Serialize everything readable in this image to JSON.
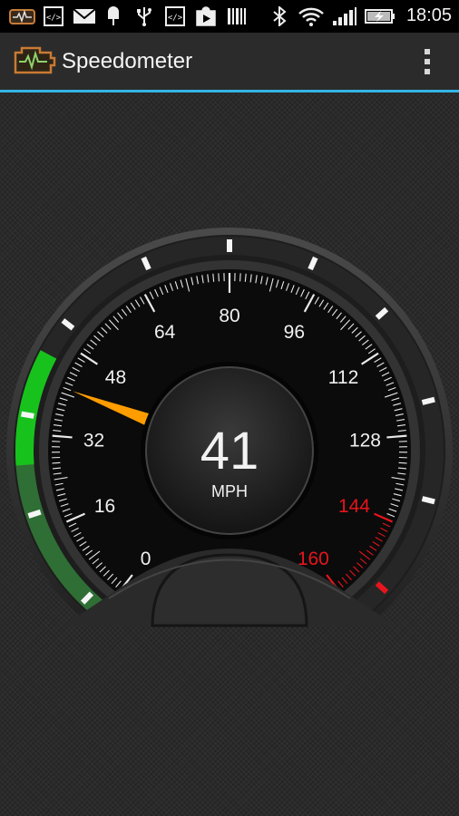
{
  "status_bar": {
    "time": "18:05",
    "left_icons": [
      "app-notification-icon",
      "code-icon",
      "mail-icon",
      "popsicle-icon",
      "usb-icon",
      "code-icon",
      "play-store-icon",
      "barcode-icon"
    ],
    "right_icons": [
      "bluetooth-icon",
      "wifi-icon",
      "signal-icon",
      "battery-charging-icon"
    ]
  },
  "action_bar": {
    "title": "Speedometer",
    "menu_icon": "overflow-menu-icon",
    "accent_color": "#33b5e5"
  },
  "speedometer": {
    "speed": "41",
    "unit": "MPH",
    "scale_min": 0,
    "scale_max": 160,
    "scale_labels": [
      "0",
      "16",
      "32",
      "48",
      "64",
      "80",
      "96",
      "112",
      "128",
      "144",
      "160"
    ],
    "redline_from": 144,
    "needle_value": 41,
    "needle_color": "#ff9c00",
    "redline_color": "#e8141c",
    "outer_arc_fill_fraction": 0.24,
    "outer_arc_color": "#18c21d"
  }
}
